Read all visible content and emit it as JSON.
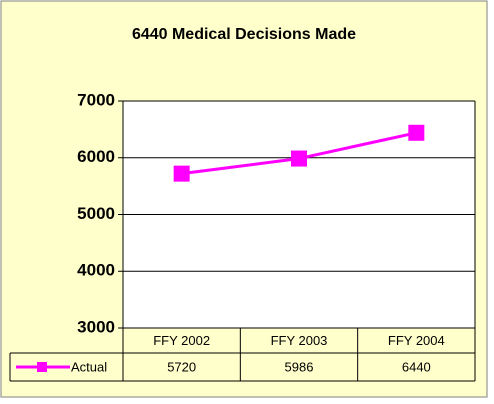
{
  "chart_data": {
    "type": "line",
    "title": "6440 Medical Decisions Made",
    "categories": [
      "FFY 2002",
      "FFY 2003",
      "FFY 2004"
    ],
    "series": [
      {
        "name": "Actual",
        "color": "#ff00ff",
        "values": [
          5720,
          5986,
          6440
        ]
      }
    ],
    "ylim": [
      3000,
      7000
    ],
    "yticks": [
      3000,
      4000,
      5000,
      6000,
      7000
    ],
    "grid": true
  }
}
